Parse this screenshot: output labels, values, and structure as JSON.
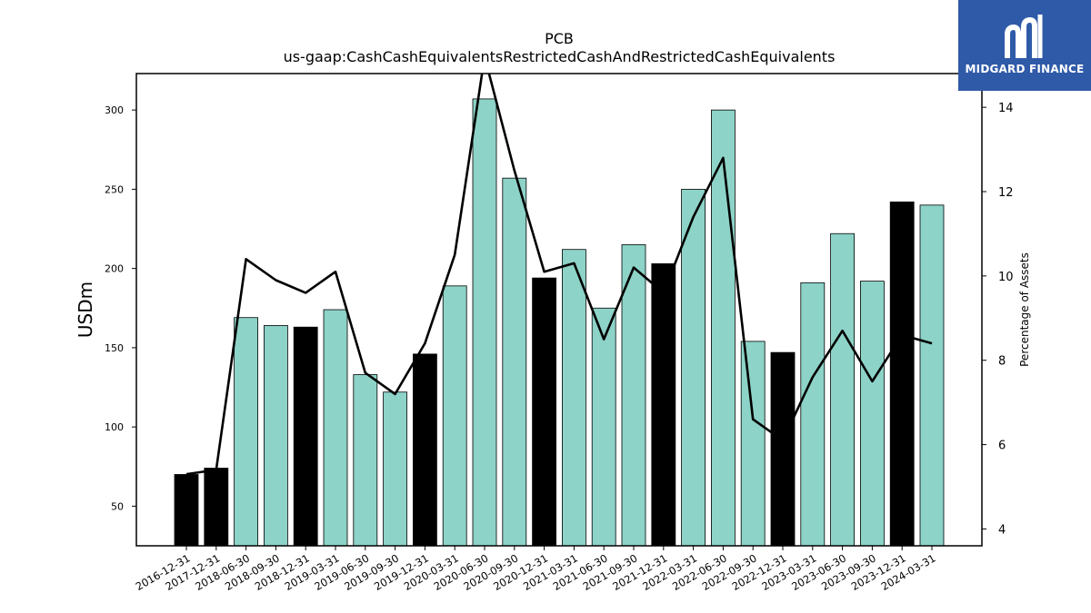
{
  "chart_data": {
    "type": "bar",
    "title": "PCB",
    "subtitle": "us-gaap:CashCashEquivalentsRestrictedCashAndRestrictedCashEquivalents",
    "ylabel": "USDm",
    "y2label": "Percentage of Assets",
    "ylim": [
      25,
      323
    ],
    "y2lim": [
      3.6,
      14.8
    ],
    "yticks": [
      50,
      100,
      150,
      200,
      250,
      300
    ],
    "y2ticks": [
      4,
      6,
      8,
      10,
      12,
      14
    ],
    "categories": [
      "2016-12-31",
      "2017-12-31",
      "2018-06-30",
      "2018-09-30",
      "2018-12-31",
      "2019-03-31",
      "2019-06-30",
      "2019-09-30",
      "2019-12-31",
      "2020-03-31",
      "2020-06-30",
      "2020-09-30",
      "2020-12-31",
      "2021-03-31",
      "2021-06-30",
      "2021-09-30",
      "2021-12-31",
      "2022-03-31",
      "2022-06-30",
      "2022-09-30",
      "2022-12-31",
      "2023-03-31",
      "2023-06-30",
      "2023-09-30",
      "2023-12-31",
      "2024-03-31"
    ],
    "series": [
      {
        "type": "bar",
        "values": [
          70,
          74,
          169,
          164,
          163,
          174,
          133,
          122,
          146,
          189,
          307,
          257,
          194,
          212,
          175,
          215,
          203,
          250,
          300,
          154,
          147,
          191,
          222,
          192,
          242,
          240
        ],
        "year_end": [
          true,
          true,
          false,
          false,
          true,
          false,
          false,
          false,
          true,
          false,
          false,
          false,
          true,
          false,
          false,
          false,
          true,
          false,
          false,
          false,
          true,
          false,
          false,
          false,
          true,
          false
        ]
      },
      {
        "type": "line",
        "axis": "right",
        "values": [
          5.3,
          5.4,
          10.4,
          9.9,
          9.6,
          10.1,
          7.7,
          7.2,
          8.4,
          10.5,
          15.2,
          12.5,
          10.1,
          10.3,
          8.5,
          10.2,
          9.6,
          11.4,
          12.8,
          6.6,
          6.1,
          7.6,
          8.7,
          7.5,
          8.6,
          8.4
        ]
      }
    ],
    "colors": {
      "bar": "#8dd3c7",
      "year_end_bar": "#000000",
      "line": "#000000"
    }
  },
  "logo": {
    "text": "MIDGARD FINANCE",
    "color": "#2f5aa8"
  }
}
